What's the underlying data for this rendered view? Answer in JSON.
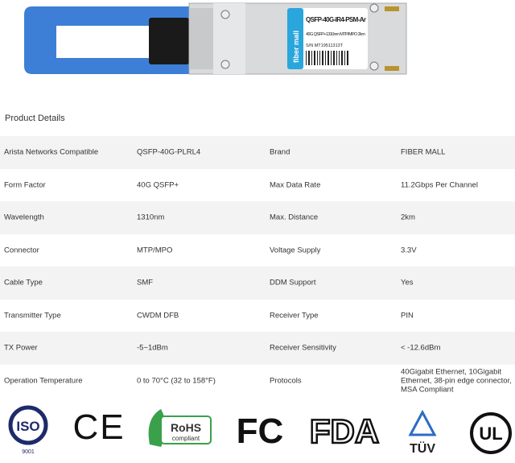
{
  "product": {
    "label_model": "QSFP-40G-IR4-PSM-Ar",
    "label_desc": "40G QSFP+1310nm MTP/MPO 2km",
    "label_serial": "S/N MT19511313T",
    "label_brand": "fiber mall",
    "colors": {
      "pull_tab": "#3d7fd6",
      "label_strip": "#2aa6dc"
    }
  },
  "section_title": "Product Details",
  "specs": [
    {
      "k1": "Arista Networks Compatible",
      "v1": "QSFP-40G-PLRL4",
      "k2": "Brand",
      "v2": "FIBER MALL"
    },
    {
      "k1": "Form Factor",
      "v1": "40G QSFP+",
      "k2": "Max Data Rate",
      "v2": "11.2Gbps Per Channel"
    },
    {
      "k1": "Wavelength",
      "v1": "1310nm",
      "k2": "Max. Distance",
      "v2": "2km"
    },
    {
      "k1": "Connector",
      "v1": "MTP/MPO",
      "k2": "Voltage Supply",
      "v2": "3.3V"
    },
    {
      "k1": "Cable Type",
      "v1": "SMF",
      "k2": "DDM Support",
      "v2": "Yes"
    },
    {
      "k1": "Transmitter Type",
      "v1": "CWDM DFB",
      "k2": "Receiver Type",
      "v2": "PIN"
    },
    {
      "k1": "TX Power",
      "v1": "-5~1dBm",
      "k2": "Receiver Sensitivity",
      "v2": "< -12.6dBm"
    },
    {
      "k1": "Operation Temperature",
      "v1": "0 to 70°C (32 to 158°F)",
      "k2": "Protocols",
      "v2": "40Gigabit Ethernet, 10Gigabit Ethernet, 38-pin edge connector, MSA Compliant"
    }
  ],
  "certifications": {
    "iso": "ISO",
    "iso_num": "9001",
    "ce": "CE",
    "rohs": "RoHS",
    "rohs_sub": "compliant",
    "fc": "FC",
    "fda": "FDA",
    "tuv": "TÜV",
    "ul": "UL"
  }
}
